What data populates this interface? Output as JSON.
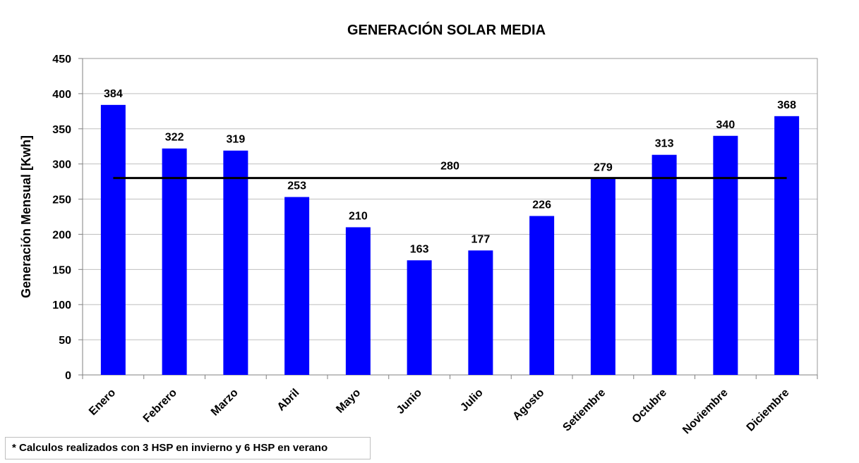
{
  "chart_data": {
    "type": "bar",
    "title": "GENERACIÓN SOLAR MEDIA",
    "ylabel": "Generación Mensual [Kwh]",
    "xlabel": "",
    "categories": [
      "Enero",
      "Febrero",
      "Marzo",
      "Abril",
      "Mayo",
      "Junio",
      "Julio",
      "Agosto",
      "Setiembre",
      "Octubre",
      "Noviembre",
      "Diciembre"
    ],
    "values": [
      384,
      322,
      319,
      253,
      210,
      163,
      177,
      226,
      279,
      313,
      340,
      368
    ],
    "ylim": [
      0,
      450
    ],
    "yticks": [
      "0",
      "50",
      "100",
      "150",
      "200",
      "250",
      "300",
      "350",
      "400",
      "450"
    ],
    "grid": true,
    "bar_color": "#0000ff",
    "average_line": {
      "value": 280,
      "label": "280",
      "color": "#000000"
    }
  },
  "footnote": "* Calculos realizados con 3 HSP en invierno y 6 HSP en verano"
}
